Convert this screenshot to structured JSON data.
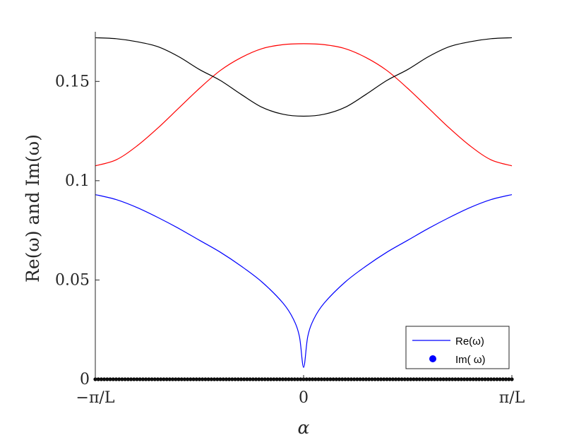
{
  "chart_data": {
    "type": "line",
    "xlabel": "α",
    "ylabel": "Re(ω) and Im(ω)",
    "xlim": [
      -1,
      1
    ],
    "ylim": [
      0,
      0.175
    ],
    "x_unit": "π/L",
    "x_tick_labels": [
      "−π/L",
      "0",
      "π/L"
    ],
    "y_ticks": [
      0,
      0.05,
      0.1,
      0.15
    ],
    "y_tick_labels": [
      "0",
      "0.05",
      "0.1",
      "0.15"
    ],
    "grid": false,
    "legend_position": "bottom-right",
    "legend": [
      {
        "label": "Re(ω)",
        "marker": "line",
        "color": "#0000ff"
      },
      {
        "label": "Im( ω)",
        "marker": "dot",
        "color": "#0000ff"
      }
    ],
    "series": [
      {
        "color": "#0000ff",
        "x": [
          -1,
          -0.9,
          -0.8,
          -0.7,
          -0.6,
          -0.5,
          -0.4,
          -0.3,
          -0.2,
          -0.1,
          -0.05,
          -0.02,
          0,
          0.02,
          0.05,
          0.1,
          0.2,
          0.3,
          0.4,
          0.5,
          0.6,
          0.7,
          0.8,
          0.9,
          1
        ],
        "y": [
          0.093,
          0.0905,
          0.0865,
          0.0815,
          0.076,
          0.07,
          0.064,
          0.057,
          0.049,
          0.0385,
          0.0305,
          0.0215,
          0.006,
          0.0215,
          0.0305,
          0.0385,
          0.049,
          0.057,
          0.064,
          0.07,
          0.076,
          0.0815,
          0.0865,
          0.0905,
          0.093
        ]
      },
      {
        "color": "#ff0000",
        "x": [
          -1,
          -0.9,
          -0.8,
          -0.7,
          -0.6,
          -0.5,
          -0.4,
          -0.3,
          -0.2,
          -0.1,
          0,
          0.1,
          0.2,
          0.3,
          0.4,
          0.5,
          0.6,
          0.7,
          0.8,
          0.9,
          1
        ],
        "y": [
          0.1075,
          0.1105,
          0.1175,
          0.1265,
          0.1365,
          0.1465,
          0.1555,
          0.162,
          0.1665,
          0.1685,
          0.169,
          0.1685,
          0.1665,
          0.162,
          0.1555,
          0.1465,
          0.1365,
          0.1265,
          0.1175,
          0.1105,
          0.1075
        ]
      },
      {
        "color": "#000000",
        "x": [
          -1,
          -0.9,
          -0.8,
          -0.7,
          -0.6,
          -0.5,
          -0.4,
          -0.3,
          -0.2,
          -0.1,
          0,
          0.1,
          0.2,
          0.3,
          0.4,
          0.5,
          0.6,
          0.7,
          0.8,
          0.9,
          1
        ],
        "y": [
          0.172,
          0.1715,
          0.17,
          0.1675,
          0.1625,
          0.156,
          0.1505,
          0.1435,
          0.137,
          0.1335,
          0.1325,
          0.1335,
          0.137,
          0.1435,
          0.1505,
          0.156,
          0.1625,
          0.1675,
          0.17,
          0.1715,
          0.172
        ]
      },
      {
        "color": "#000000",
        "style": "dots",
        "x_range": [
          -1,
          1
        ],
        "y_constant": 0
      }
    ]
  },
  "colors": {
    "axis": "#262626",
    "legend_border": "#262626"
  }
}
